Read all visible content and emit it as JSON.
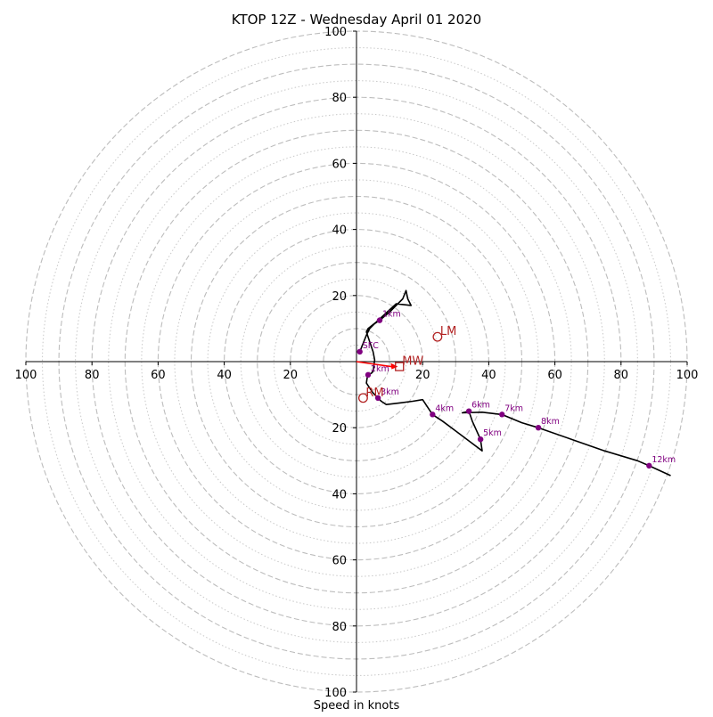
{
  "chart_data": {
    "type": "hodograph",
    "title": "KTOP 12Z - Wednesday April 01 2020",
    "xlabel": "Speed in knots",
    "ylabel": "",
    "range": [
      -100,
      100
    ],
    "grid": {
      "dashed_rings": [
        10,
        20,
        30,
        40,
        50,
        60,
        70,
        80,
        90,
        100
      ],
      "dotted_rings": [
        5,
        15,
        25,
        35,
        45,
        55,
        65,
        75,
        85,
        95
      ]
    },
    "ticks": {
      "x": [
        {
          "value": -100,
          "label": "100"
        },
        {
          "value": -80,
          "label": "80"
        },
        {
          "value": -60,
          "label": "60"
        },
        {
          "value": -40,
          "label": "40"
        },
        {
          "value": -20,
          "label": "20"
        },
        {
          "value": 20,
          "label": "20"
        },
        {
          "value": 40,
          "label": "40"
        },
        {
          "value": 60,
          "label": "60"
        },
        {
          "value": 80,
          "label": "80"
        },
        {
          "value": 100,
          "label": "100"
        }
      ],
      "y": [
        {
          "value": 100,
          "label": "100"
        },
        {
          "value": 80,
          "label": "80"
        },
        {
          "value": 60,
          "label": "60"
        },
        {
          "value": 40,
          "label": "40"
        },
        {
          "value": 20,
          "label": "20"
        },
        {
          "value": -20,
          "label": "20"
        },
        {
          "value": -40,
          "label": "40"
        },
        {
          "value": -60,
          "label": "60"
        },
        {
          "value": -80,
          "label": "80"
        },
        {
          "value": -100,
          "label": "100"
        }
      ]
    },
    "hodograph_line_color": "#000000",
    "height_marker_color": "#800080",
    "hodograph": [
      {
        "u": 1,
        "v": 3
      },
      {
        "u": 3,
        "v": 8
      },
      {
        "u": 4,
        "v": 10
      },
      {
        "u": 5.5,
        "v": 11.5
      },
      {
        "u": 7,
        "v": 12.5
      },
      {
        "u": 10,
        "v": 15
      },
      {
        "u": 12,
        "v": 17
      },
      {
        "u": 14,
        "v": 19
      },
      {
        "u": 15,
        "v": 21.5
      },
      {
        "u": 15.5,
        "v": 19
      },
      {
        "u": 16.5,
        "v": 17
      },
      {
        "u": 12,
        "v": 17.5
      },
      {
        "u": 6,
        "v": 12
      },
      {
        "u": 3.5,
        "v": 10
      },
      {
        "u": 3,
        "v": 9
      },
      {
        "u": 4,
        "v": 6
      },
      {
        "u": 5,
        "v": 3
      },
      {
        "u": 5.5,
        "v": 0.5
      },
      {
        "u": 5,
        "v": -3
      },
      {
        "u": 4.5,
        "v": -3.5
      },
      {
        "u": 3.5,
        "v": -4
      },
      {
        "u": 3.2,
        "v": -5
      },
      {
        "u": 3,
        "v": -6.5
      },
      {
        "u": 4,
        "v": -8
      },
      {
        "u": 5,
        "v": -9.5
      },
      {
        "u": 6.5,
        "v": -11
      },
      {
        "u": 7.5,
        "v": -12
      },
      {
        "u": 9,
        "v": -13
      },
      {
        "u": 13,
        "v": -12.5
      },
      {
        "u": 17,
        "v": -12
      },
      {
        "u": 20,
        "v": -11.5
      },
      {
        "u": 23,
        "v": -16
      },
      {
        "u": 26,
        "v": -18
      },
      {
        "u": 30,
        "v": -21
      },
      {
        "u": 34,
        "v": -24
      },
      {
        "u": 38,
        "v": -27
      },
      {
        "u": 37.5,
        "v": -23.5
      },
      {
        "u": 35,
        "v": -18
      },
      {
        "u": 34,
        "v": -15
      },
      {
        "u": 32,
        "v": -15.5
      },
      {
        "u": 38,
        "v": -15.3
      },
      {
        "u": 44,
        "v": -16
      },
      {
        "u": 50,
        "v": -18.5
      },
      {
        "u": 55,
        "v": -20
      },
      {
        "u": 65,
        "v": -23.5
      },
      {
        "u": 75,
        "v": -27
      },
      {
        "u": 85,
        "v": -30
      },
      {
        "u": 88.5,
        "v": -31.5
      },
      {
        "u": 95,
        "v": -34.5
      }
    ],
    "heights": [
      {
        "label": "SFC",
        "u": 1,
        "v": 3
      },
      {
        "label": "1km",
        "u": 7,
        "v": 12.5
      },
      {
        "label": "2km",
        "u": 3.5,
        "v": -4
      },
      {
        "label": "3km",
        "u": 6.5,
        "v": -11
      },
      {
        "label": "4km",
        "u": 23,
        "v": -16
      },
      {
        "label": "5km",
        "u": 37.5,
        "v": -23.5
      },
      {
        "label": "6km",
        "u": 34,
        "v": -15
      },
      {
        "label": "7km",
        "u": 44,
        "v": -16
      },
      {
        "label": "8km",
        "u": 55,
        "v": -20
      },
      {
        "label": "12km",
        "u": 88.5,
        "v": -31.5
      }
    ],
    "markers": [
      {
        "label": "LM",
        "shape": "circle",
        "u": 24.5,
        "v": 7.5,
        "color": "#b22222"
      },
      {
        "label": "RM",
        "shape": "circle",
        "u": 2,
        "v": -11,
        "color": "#b22222"
      },
      {
        "label": "MW",
        "shape": "square",
        "u": 13,
        "v": -1.5,
        "color": "#b22222"
      }
    ],
    "shear_arrow": {
      "from_u": 0,
      "from_v": 0,
      "to_u": 12.5,
      "to_v": -1.5,
      "color": "#ff0000"
    }
  }
}
